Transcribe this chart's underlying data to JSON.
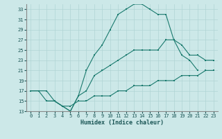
{
  "xlabel": "Humidex (Indice chaleur)",
  "bg_color": "#cce8e8",
  "grid_color": "#b0d4d4",
  "line_color": "#1a7a6e",
  "xlim": [
    -0.5,
    23.5
  ],
  "ylim": [
    13,
    34
  ],
  "yticks": [
    13,
    15,
    17,
    19,
    21,
    23,
    25,
    27,
    29,
    31,
    33
  ],
  "xticks": [
    0,
    1,
    2,
    3,
    4,
    5,
    6,
    7,
    8,
    9,
    10,
    11,
    12,
    13,
    14,
    15,
    16,
    17,
    18,
    19,
    20,
    21,
    22,
    23
  ],
  "line1_x": [
    0,
    1,
    2,
    3,
    4,
    5,
    6,
    7,
    8,
    9,
    10,
    11,
    12,
    13,
    14,
    15,
    16,
    17,
    18,
    19,
    20,
    21
  ],
  "line1_y": [
    17,
    17,
    17,
    15,
    14,
    13,
    16,
    21,
    24,
    26,
    29,
    32,
    33,
    34,
    34,
    33,
    32,
    32,
    27,
    24,
    23,
    21
  ],
  "line2_x": [
    0,
    1,
    2,
    3,
    4,
    5,
    6,
    7,
    8,
    9,
    10,
    11,
    12,
    13,
    14,
    15,
    16,
    17,
    18,
    19,
    20,
    21,
    22,
    23
  ],
  "line2_y": [
    17,
    17,
    15,
    15,
    14,
    14,
    15,
    15,
    16,
    16,
    16,
    17,
    17,
    18,
    18,
    18,
    19,
    19,
    19,
    20,
    20,
    20,
    21,
    21
  ],
  "line3_x": [
    2,
    3,
    4,
    5,
    6,
    7,
    8,
    9,
    10,
    11,
    12,
    13,
    14,
    15,
    16,
    17,
    18,
    19,
    20,
    21,
    22,
    23
  ],
  "line3_y": [
    15,
    15,
    14,
    13,
    16,
    17,
    20,
    21,
    22,
    23,
    24,
    25,
    25,
    25,
    25,
    27,
    27,
    26,
    24,
    24,
    23,
    23
  ]
}
